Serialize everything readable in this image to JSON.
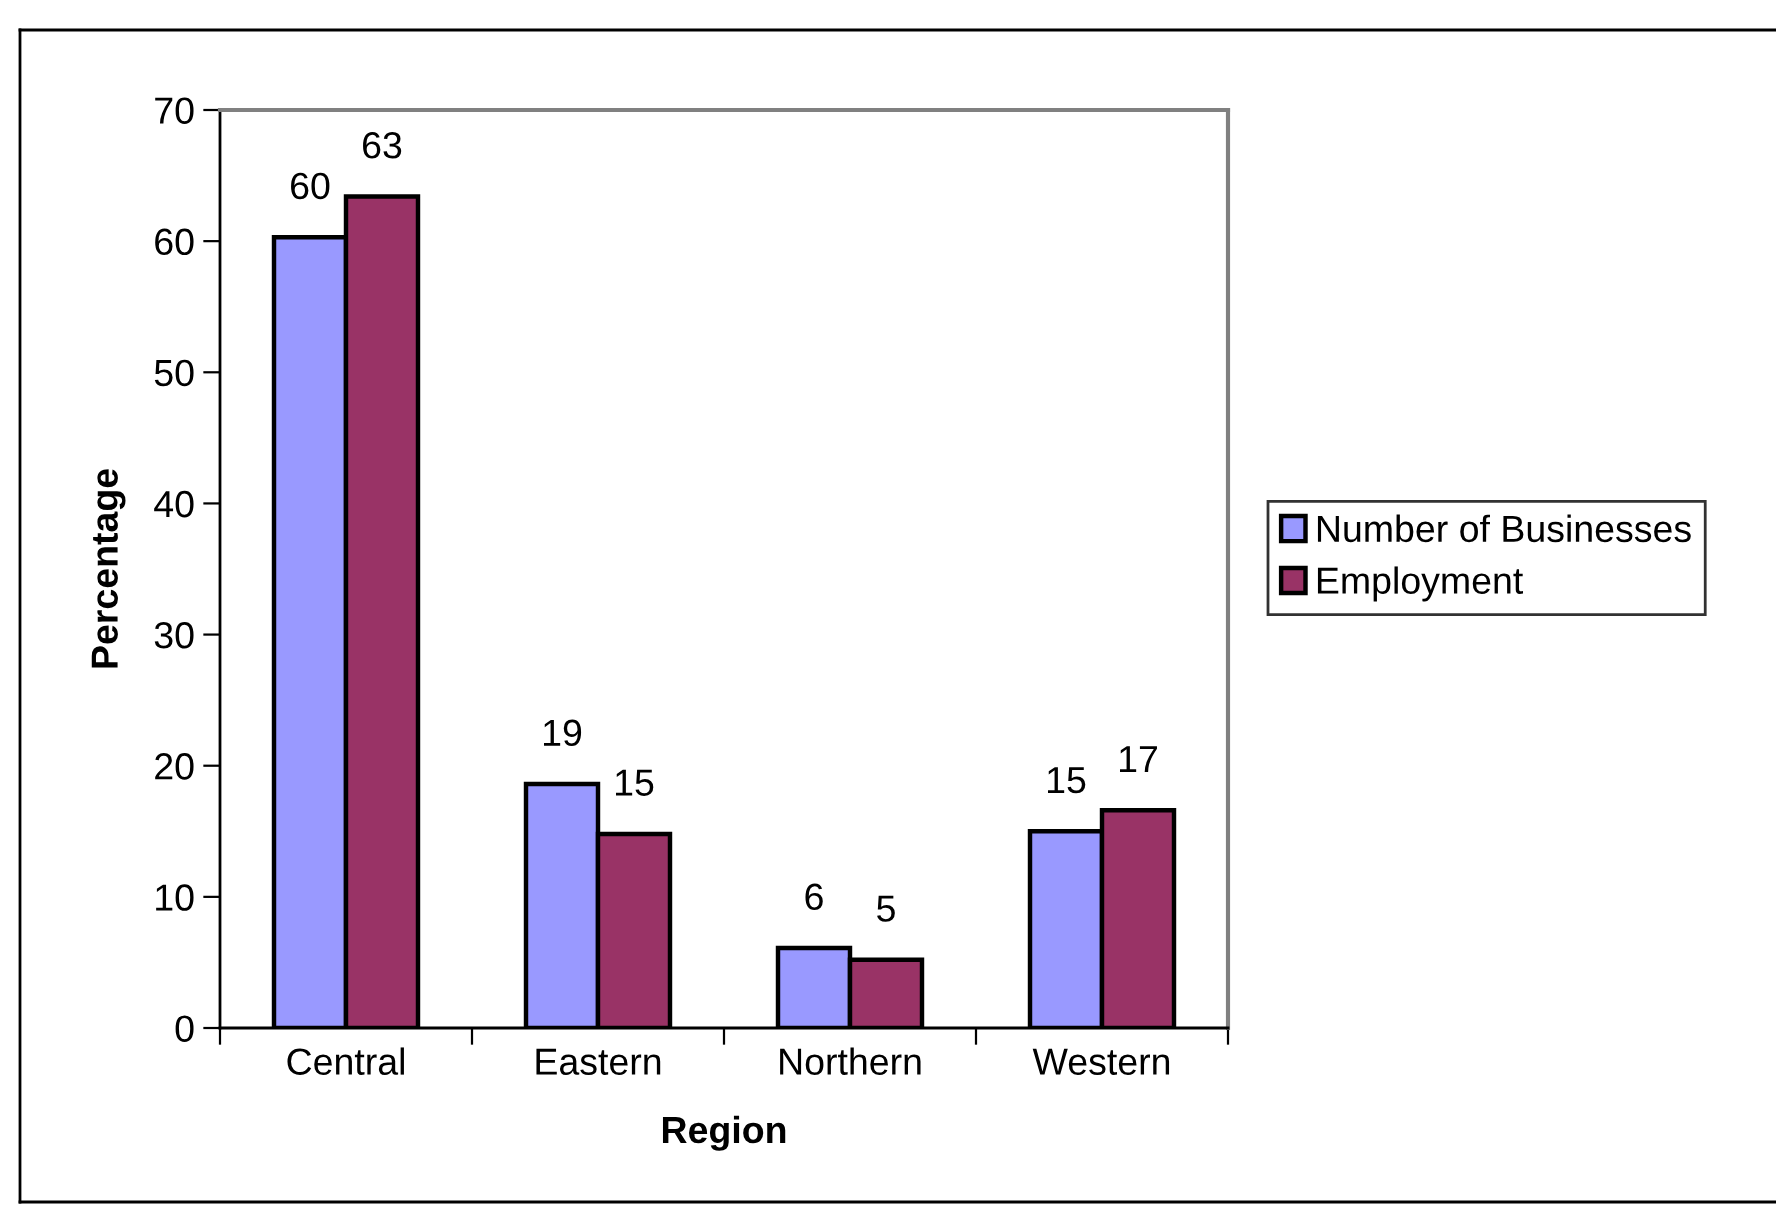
{
  "chart_data": {
    "type": "bar",
    "xlabel": "Region",
    "ylabel": "Percentage",
    "categories": [
      "Central",
      "Eastern",
      "Northern",
      "Western"
    ],
    "series": [
      {
        "name": "Number of Businesses",
        "color": "#9999ff",
        "values": [
          60.3,
          18.6,
          6.1,
          15.0
        ],
        "value_labels": [
          "60",
          "19",
          "6",
          "15"
        ]
      },
      {
        "name": "Employment",
        "color": "#993366",
        "values": [
          63.4,
          14.8,
          5.2,
          16.6
        ],
        "value_labels": [
          "63",
          "15",
          "5",
          "17"
        ]
      }
    ],
    "ylim": [
      0,
      70
    ],
    "yticks": [
      0,
      10,
      20,
      30,
      40,
      50,
      60,
      70
    ],
    "legend": "right"
  }
}
